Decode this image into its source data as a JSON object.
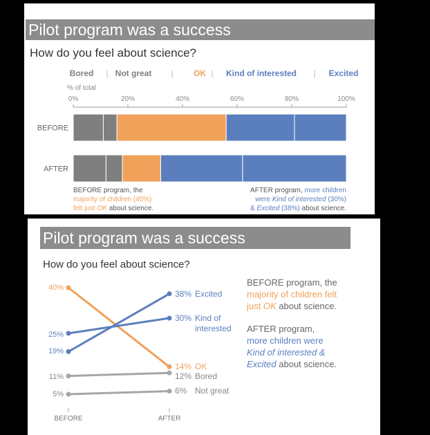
{
  "colors": {
    "gray": "#7f7f7f",
    "orange": "#f0a15a",
    "blue": "#5b7fbe",
    "lightgray": "#a6a6a6",
    "title_bg": "#8c8c8c"
  },
  "top": {
    "title": "Pilot program was a success",
    "question": "How do you feel about science?",
    "legend": [
      "Bored",
      "Not great",
      "OK",
      "Kind of interested",
      "Excited"
    ],
    "axis_label": "% of total",
    "note_before": [
      "BEFORE program, the",
      "majority of children (40%)",
      "felt just ",
      "OK",
      " about science."
    ],
    "note_after": [
      "AFTER program, ",
      "more children",
      "were ",
      "Kind of interested",
      " (30%)",
      "& ",
      "Excited",
      " (38%)",
      " about science."
    ]
  },
  "bottom": {
    "title": "Pilot program was a success",
    "question": "How do you feel about science?",
    "note_before": [
      "BEFORE program, the",
      "majority of children felt",
      "just ",
      "OK",
      " about science."
    ],
    "note_after": [
      "AFTER program,",
      "more children were",
      "Kind of interested &",
      "Excited",
      " about science."
    ]
  },
  "chart_data": [
    {
      "type": "bar",
      "orientation": "horizontal",
      "stacked": true,
      "title": "Pilot program was a success",
      "subtitle": "How do you feel about science?",
      "xlabel": "% of total",
      "xlim": [
        0,
        100
      ],
      "xticks": [
        "0%",
        "20%",
        "40%",
        "60%",
        "80%",
        "100%"
      ],
      "categories": [
        "BEFORE",
        "AFTER"
      ],
      "legend_position": "top",
      "series": [
        {
          "name": "Bored",
          "color": "#7f7f7f",
          "values": [
            11,
            12
          ]
        },
        {
          "name": "Not great",
          "color": "#7f7f7f",
          "values": [
            5,
            6
          ]
        },
        {
          "name": "OK",
          "color": "#f0a15a",
          "values": [
            40,
            14
          ]
        },
        {
          "name": "Kind of interested",
          "color": "#5b7fbe",
          "values": [
            25,
            30
          ]
        },
        {
          "name": "Excited",
          "color": "#5b7fbe",
          "values": [
            19,
            38
          ]
        }
      ]
    },
    {
      "type": "line",
      "chart_style": "slope",
      "title": "Pilot program was a success",
      "subtitle": "How do you feel about science?",
      "x": [
        "BEFORE",
        "AFTER"
      ],
      "series": [
        {
          "name": "OK",
          "color": "#f0a15a",
          "values": [
            40,
            14
          ],
          "labels": [
            "40%",
            "14%"
          ],
          "end_label": "OK"
        },
        {
          "name": "Kind of interested",
          "color": "#5b7fbe",
          "values": [
            25,
            30
          ],
          "labels": [
            "25%",
            "30%"
          ],
          "end_label": [
            "Kind of",
            "interested"
          ]
        },
        {
          "name": "Excited",
          "color": "#5b7fbe",
          "values": [
            19,
            38
          ],
          "labels": [
            "19%",
            "38%"
          ],
          "end_label": "Excited"
        },
        {
          "name": "Bored",
          "color": "#a6a6a6",
          "values": [
            11,
            12
          ],
          "labels": [
            "11%",
            "12%"
          ],
          "end_label": "Bored"
        },
        {
          "name": "Not great",
          "color": "#a6a6a6",
          "values": [
            5,
            6
          ],
          "labels": [
            "5%",
            "6%"
          ],
          "end_label": "Not great"
        }
      ]
    }
  ]
}
